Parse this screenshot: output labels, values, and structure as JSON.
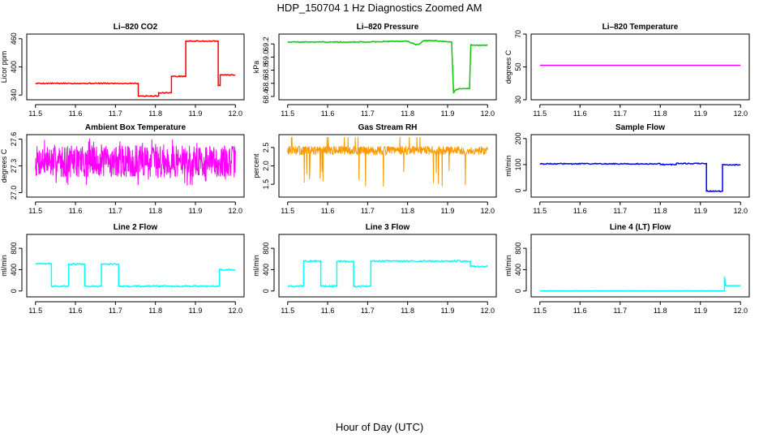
{
  "figure": {
    "title": "HDP_150704  1 Hz Diagnostics Zoomed AM",
    "xlabel": "Hour of Day (UTC)"
  },
  "chart_data": [
    {
      "id": "co2",
      "type": "line",
      "title": "Li–820 CO2",
      "ylabel": "Licor ppm",
      "color": "#ff0000",
      "xlim": [
        11.5,
        12.0
      ],
      "ylim": [
        330,
        470
      ],
      "xticks": [
        "11.5",
        "11.6",
        "11.7",
        "11.8",
        "11.9",
        "12.0"
      ],
      "yticks": [
        "340",
        "400",
        "460"
      ],
      "style": "step",
      "noise": 1,
      "x": [
        11.5,
        11.757,
        11.757,
        11.808,
        11.808,
        11.84,
        11.84,
        11.876,
        11.876,
        11.957,
        11.957,
        11.962,
        11.962,
        12.0
      ],
      "y": [
        365,
        365,
        338,
        338,
        345,
        345,
        380,
        380,
        455,
        455,
        360,
        360,
        383,
        383
      ]
    },
    {
      "id": "pressure",
      "type": "line",
      "title": "Li–820 Pressure",
      "ylabel": "kPa",
      "color": "#00cc00",
      "xlim": [
        11.5,
        12.0
      ],
      "ylim": [
        68.35,
        69.35
      ],
      "xticks": [
        "11.5",
        "11.6",
        "11.7",
        "11.8",
        "11.9",
        "12.0"
      ],
      "yticks": [
        "68.4",
        "68.6",
        "68.8",
        "69.0",
        "69.2"
      ],
      "style": "step",
      "noise": 0.006,
      "x": [
        11.5,
        11.7,
        11.76,
        11.8,
        11.82,
        11.83,
        11.84,
        11.87,
        11.9,
        11.91,
        11.915,
        11.92,
        11.93,
        11.955,
        11.958,
        11.965,
        12.0
      ],
      "y": [
        69.23,
        69.23,
        69.24,
        69.24,
        69.19,
        69.2,
        69.25,
        69.25,
        69.23,
        69.23,
        68.45,
        68.5,
        68.52,
        68.52,
        69.19,
        69.18,
        69.18
      ]
    },
    {
      "id": "temperature",
      "type": "line",
      "title": "Li–820 Temperature",
      "ylabel": "degrees C",
      "color": "#ff00ff",
      "xlim": [
        11.5,
        12.0
      ],
      "ylim": [
        30,
        70
      ],
      "xticks": [
        "11.5",
        "11.6",
        "11.7",
        "11.8",
        "11.9",
        "12.0"
      ],
      "yticks": [
        "30",
        "50",
        "70"
      ],
      "style": "step",
      "noise": 0,
      "x": [
        11.5,
        12.0
      ],
      "y": [
        51,
        51
      ]
    },
    {
      "id": "ambient",
      "type": "line",
      "title": "Ambient Box Temperature",
      "ylabel": "degrees C",
      "color": "#ff00ff",
      "xlim": [
        11.5,
        12.0
      ],
      "ylim": [
        26.95,
        27.65
      ],
      "xticks": [
        "11.5",
        "11.6",
        "11.7",
        "11.8",
        "11.9",
        "12.0"
      ],
      "yticks": [
        "27.0",
        "27.3",
        "27.6"
      ],
      "style": "noisy",
      "base": 27.35,
      "spread": 0.18,
      "spikes": 0.27,
      "seed": 7,
      "x": [
        11.5,
        12.0
      ],
      "y": [
        27.35,
        27.35
      ]
    },
    {
      "id": "rh",
      "type": "line",
      "title": "Gas Stream RH",
      "ylabel": "percent",
      "color": "#ff9900",
      "xlim": [
        11.5,
        12.0
      ],
      "ylim": [
        1.15,
        2.85
      ],
      "xticks": [
        "11.5",
        "11.6",
        "11.7",
        "11.8",
        "11.9",
        "12.0"
      ],
      "yticks": [
        "1.5",
        "2.0",
        "2.5"
      ],
      "style": "noisy",
      "base": 2.42,
      "spread": 0.12,
      "spikes": 1.0,
      "seed": 13,
      "x": [
        11.5,
        12.0
      ],
      "y": [
        2.42,
        2.42
      ]
    },
    {
      "id": "sample",
      "type": "line",
      "title": "Sample Flow",
      "ylabel": "ml/min",
      "color": "#0000ff",
      "xlim": [
        11.5,
        12.0
      ],
      "ylim": [
        -25,
        215
      ],
      "xticks": [
        "11.5",
        "11.6",
        "11.7",
        "11.8",
        "11.9",
        "12.0"
      ],
      "yticks": [
        "0",
        "100",
        "200"
      ],
      "style": "step",
      "noise": 2,
      "x": [
        11.5,
        11.8,
        11.8,
        11.84,
        11.84,
        11.915,
        11.915,
        11.955,
        11.955,
        12.0
      ],
      "y": [
        103,
        103,
        100,
        100,
        104,
        104,
        -2,
        -2,
        100,
        98
      ]
    },
    {
      "id": "line2",
      "type": "line",
      "title": "Line 2 Flow",
      "ylabel": "ml/min",
      "color": "#00ffff",
      "xlim": [
        11.5,
        12.0
      ],
      "ylim": [
        -110,
        1060
      ],
      "xticks": [
        "11.5",
        "11.6",
        "11.7",
        "11.8",
        "11.9",
        "12.0"
      ],
      "yticks": [
        "0",
        "400",
        "800"
      ],
      "style": "step",
      "noise": 12,
      "x": [
        11.5,
        11.54,
        11.54,
        11.583,
        11.583,
        11.623,
        11.623,
        11.665,
        11.665,
        11.708,
        11.708,
        11.96,
        11.96,
        12.0
      ],
      "y": [
        510,
        510,
        90,
        90,
        505,
        505,
        90,
        90,
        505,
        505,
        90,
        90,
        400,
        400
      ]
    },
    {
      "id": "line3",
      "type": "line",
      "title": "Line 3 Flow",
      "ylabel": "ml/min",
      "color": "#00ffff",
      "xlim": [
        11.5,
        12.0
      ],
      "ylim": [
        -110,
        1060
      ],
      "xticks": [
        "11.5",
        "11.6",
        "11.7",
        "11.8",
        "11.9",
        "12.0"
      ],
      "yticks": [
        "0",
        "400",
        "800"
      ],
      "style": "step",
      "noise": 14,
      "x": [
        11.5,
        11.54,
        11.54,
        11.583,
        11.583,
        11.623,
        11.623,
        11.665,
        11.665,
        11.708,
        11.708,
        11.957,
        11.957,
        12.0
      ],
      "y": [
        90,
        90,
        560,
        560,
        90,
        90,
        555,
        555,
        90,
        90,
        560,
        560,
        460,
        460
      ]
    },
    {
      "id": "line4",
      "type": "line",
      "title": "Line 4 (LT) Flow",
      "ylabel": "ml/min",
      "color": "#00ffff",
      "xlim": [
        11.5,
        12.0
      ],
      "ylim": [
        -110,
        1060
      ],
      "xticks": [
        "11.5",
        "11.6",
        "11.7",
        "11.8",
        "11.9",
        "12.0"
      ],
      "yticks": [
        "0",
        "400",
        "800"
      ],
      "style": "step",
      "noise": 2,
      "x": [
        11.5,
        11.96,
        11.96,
        11.963,
        11.963,
        12.0
      ],
      "y": [
        2,
        2,
        270,
        100,
        100,
        100
      ]
    }
  ]
}
